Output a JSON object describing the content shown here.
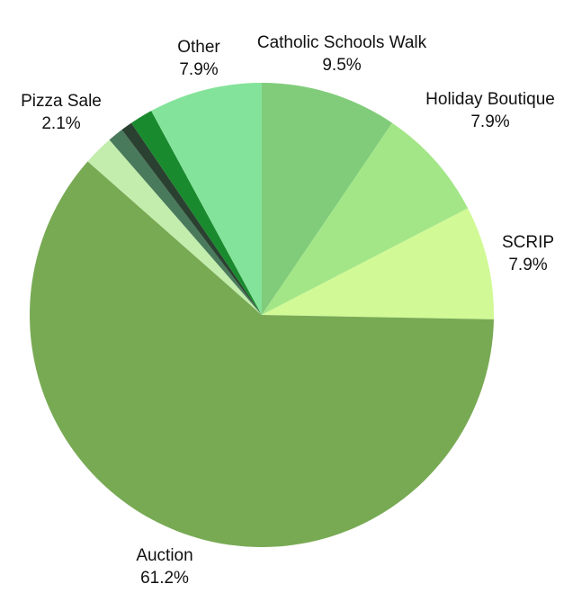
{
  "chart_data": {
    "type": "pie",
    "categories": [
      "Catholic Schools Walk",
      "Holiday Boutique",
      "SCRIP",
      "Auction",
      "Pizza Sale",
      null,
      null,
      null,
      "Other"
    ],
    "values": [
      9.5,
      7.9,
      7.9,
      61.2,
      2.1,
      1.1,
      0.8,
      1.6,
      7.9
    ],
    "value_labels": [
      "9.5%",
      "7.9%",
      "7.9%",
      "61.2%",
      "2.1%",
      null,
      null,
      null,
      "7.9%"
    ],
    "colors": [
      "#80cc7a",
      "#a3e687",
      "#d1f996",
      "#78aa54",
      "#c3edac",
      "#4a7a5c",
      "#2a4030",
      "#1a8a2e",
      "#84e39a"
    ]
  }
}
